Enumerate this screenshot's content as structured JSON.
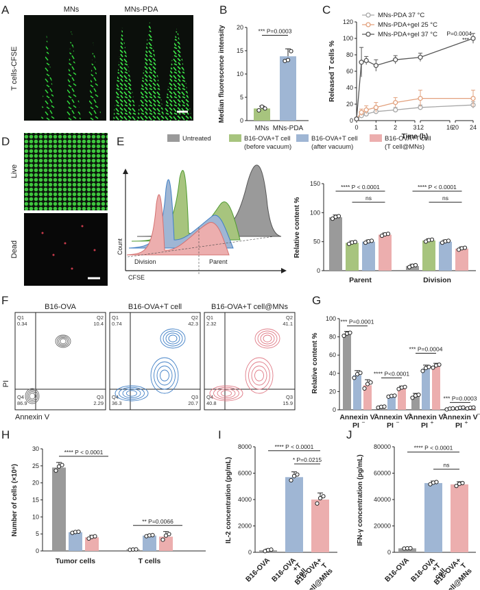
{
  "panel_letters": [
    "A",
    "B",
    "C",
    "D",
    "E",
    "F",
    "G",
    "H",
    "I",
    "J"
  ],
  "panelA": {
    "titles": [
      "MNs",
      "MNs-PDA"
    ],
    "ylabel": "T cells-CFSE"
  },
  "panelD": {
    "labels": [
      "Live",
      "Dead"
    ]
  },
  "panelE": {
    "legend": [
      {
        "name": "Untreated",
        "sub": "",
        "color": "#9a9a9a"
      },
      {
        "name": "B16-OVA+T cell",
        "sub": "(before vacuum)",
        "color": "#a7c47e"
      },
      {
        "name": "B16-OVA+T cell",
        "sub": "(after vacuum)",
        "color": "#9fb6d4"
      },
      {
        "name": "B16-OVA+T cell",
        "sub": "(T cell@MNs)",
        "color": "#ecaeae"
      }
    ],
    "hist_axis": {
      "y": "Count",
      "x": "CFSE"
    },
    "regions": [
      "Division",
      "Parent"
    ]
  },
  "panelF": {
    "titles": [
      "B16-OVA",
      "B16-OVA+T cell",
      "B16-OVA+T cell@MNs"
    ],
    "xlabel": "Annexin V",
    "ylabel": "PI",
    "quadrants": [
      {
        "Q1": "0.34",
        "Q2": "10.4",
        "Q3": "2.29",
        "Q4": "86.9"
      },
      {
        "Q1": "0.74",
        "Q2": "42.3",
        "Q3": "20.7",
        "Q4": "36.3"
      },
      {
        "Q1": "2.32",
        "Q2": "41.1",
        "Q3": "15.9",
        "Q4": "40.8"
      }
    ],
    "qnames": [
      "Q1",
      "Q2",
      "Q3",
      "Q4"
    ]
  },
  "chart_data": [
    {
      "id": "B",
      "type": "bar",
      "categories": [
        "MNs",
        "MNs-PDA"
      ],
      "values": [
        2.6,
        13.8
      ],
      "errors": [
        0.5,
        1.6
      ],
      "points": [
        [
          2.2,
          3.0,
          2.6
        ],
        [
          12.8,
          13.0,
          14.9
        ]
      ],
      "colors": [
        "#a7c47e",
        "#9fb6d4"
      ],
      "ylabel": "Median fluorescence intensity",
      "ylim": [
        0,
        20
      ],
      "yticks": [
        0,
        5,
        10,
        15,
        20
      ],
      "significance": [
        {
          "stars": "***",
          "p": "P=0.0003"
        }
      ]
    },
    {
      "id": "C",
      "type": "line",
      "ylabel": "Released T cells %",
      "xlabel": "Time (h)",
      "ylim": [
        0,
        120
      ],
      "yticks": [
        0,
        20,
        40,
        60,
        80,
        100,
        120
      ],
      "xticks": [
        "0",
        "1",
        "2",
        "3",
        "12",
        "16",
        "20",
        "24"
      ],
      "series": [
        {
          "name": "MNs-PDA 37 °C",
          "color": "#a6a6a6",
          "x": [
            0,
            0.25,
            0.5,
            1,
            2,
            12,
            24
          ],
          "y": [
            2,
            6,
            8,
            11,
            13,
            16,
            19
          ],
          "err": [
            1,
            2,
            2,
            3,
            3,
            3,
            4
          ]
        },
        {
          "name": "MNs-PDA+gel 25 °C",
          "color": "#e2a07c",
          "x": [
            0,
            0.25,
            0.5,
            1,
            2,
            12,
            24
          ],
          "y": [
            2,
            10,
            13,
            16,
            22,
            27,
            27
          ],
          "err": [
            1,
            4,
            5,
            6,
            6,
            10,
            10
          ]
        },
        {
          "name": "MNs-PDA+gel 37 °C",
          "color": "#555555",
          "x": [
            0,
            0.25,
            0.5,
            1,
            2,
            12,
            24
          ],
          "y": [
            2,
            71,
            73,
            67,
            74,
            77,
            100
          ],
          "err": [
            1,
            18,
            5,
            7,
            5,
            5,
            6
          ]
        }
      ],
      "significance": [
        {
          "stars": "***",
          "p": "P=0.0004"
        }
      ]
    },
    {
      "id": "E",
      "type": "bar",
      "categories": [
        "Parent",
        "Division"
      ],
      "series_names": [
        "Untreated",
        "B16-OVA+T cell (before vacuum)",
        "B16-OVA+T cell (after vacuum)",
        "B16-OVA+T cell (T cell@MNs)"
      ],
      "colors": [
        "#9a9a9a",
        "#a7c47e",
        "#9fb6d4",
        "#ecaeae"
      ],
      "values": [
        [
          92,
          48,
          50,
          62
        ],
        [
          8,
          52,
          50,
          38
        ]
      ],
      "errors": [
        [
          4,
          3,
          3,
          3
        ],
        [
          3,
          3,
          3,
          3
        ]
      ],
      "ylabel": "Relative content %",
      "ylim": [
        0,
        150
      ],
      "yticks": [
        0,
        50,
        100,
        150
      ],
      "significance": [
        {
          "stars": "****",
          "p": "P < 0.0001"
        },
        {
          "stars": "",
          "p": "ns"
        },
        {
          "stars": "****",
          "p": "P < 0.0001"
        },
        {
          "stars": "",
          "p": "ns"
        }
      ]
    },
    {
      "id": "G",
      "type": "bar",
      "categories": [
        {
          "main": "Annexin V",
          "sup": "−",
          "sub": "PI",
          "subsup": "−"
        },
        {
          "main": "Annexin V",
          "sup": "+",
          "sub": "PI",
          "subsup": "−"
        },
        {
          "main": "Annexin V",
          "sup": "+",
          "sub": "PI",
          "subsup": "+"
        },
        {
          "main": "Annexin V",
          "sup": "−",
          "sub": "PI",
          "subsup": "+"
        }
      ],
      "colors": [
        "#9a9a9a",
        "#9fb6d4",
        "#ecaeae"
      ],
      "values": [
        [
          83,
          38,
          27
        ],
        [
          3,
          15,
          24
        ],
        [
          15,
          45,
          48
        ],
        [
          1,
          2,
          2
        ]
      ],
      "errors": [
        [
          3,
          5,
          6
        ],
        [
          1,
          1,
          2
        ],
        [
          3,
          4,
          3
        ],
        [
          1,
          1,
          1
        ]
      ],
      "ylabel": "Relative content %",
      "ylim": [
        0,
        100
      ],
      "yticks": [
        0,
        20,
        40,
        60,
        80,
        100
      ],
      "significance": [
        {
          "stars": "***",
          "p": "P=0.0001"
        },
        {
          "stars": "****",
          "p": "P<0.0001"
        },
        {
          "stars": "***",
          "p": "P=0.0004"
        },
        {
          "stars": "***",
          "p": "P=0.0003"
        }
      ]
    },
    {
      "id": "H",
      "type": "bar",
      "categories": [
        "Tumor cells",
        "T cells"
      ],
      "colors": [
        "#9a9a9a",
        "#9fb6d4",
        "#ecaeae"
      ],
      "values": [
        [
          24.5,
          5.5,
          4.0
        ],
        [
          0.4,
          4.5,
          4.2
        ]
      ],
      "errors": [
        [
          1.5,
          0.3,
          0.6
        ],
        [
          0.1,
          0.3,
          1.5
        ]
      ],
      "ylabel": "Number of cells (×10⁶)",
      "ylim": [
        0,
        30
      ],
      "yticks": [
        0,
        5,
        10,
        15,
        20,
        25,
        30
      ],
      "significance": [
        {
          "stars": "****",
          "p": "P < 0.0001"
        },
        {
          "stars": "**",
          "p": "P=0.0066"
        }
      ]
    },
    {
      "id": "I",
      "type": "bar",
      "categories": [
        "B16-OVA",
        "B16-OVA +T cell",
        "B16-OVA+ T cell@MNs"
      ],
      "values": [
        150,
        5700,
        4000
      ],
      "errors": [
        100,
        400,
        500
      ],
      "colors": [
        "#9a9a9a",
        "#9fb6d4",
        "#ecaeae"
      ],
      "ylabel": "IL-2 concentration (pg/mL)",
      "ylim": [
        0,
        8000
      ],
      "yticks": [
        0,
        2000,
        4000,
        6000,
        8000
      ],
      "significance": [
        {
          "stars": "****",
          "p": "P < 0.0001"
        },
        {
          "stars": "*",
          "p": "P=0.0215"
        }
      ]
    },
    {
      "id": "J",
      "type": "bar",
      "categories": [
        "B16-OVA",
        "B16-OVA +T cell",
        "B16-OVA+ T cell@MNs"
      ],
      "values": [
        3000,
        52500,
        51500
      ],
      "errors": [
        200,
        1500,
        2000
      ],
      "colors": [
        "#9a9a9a",
        "#9fb6d4",
        "#ecaeae"
      ],
      "ylabel": "IFN-γ concentration (pg/mL)",
      "ylim": [
        0,
        80000
      ],
      "yticks": [
        0,
        20000,
        40000,
        60000,
        80000
      ],
      "significance": [
        {
          "stars": "****",
          "p": "P < 0.0001"
        },
        {
          "stars": "",
          "p": "ns"
        }
      ]
    }
  ]
}
